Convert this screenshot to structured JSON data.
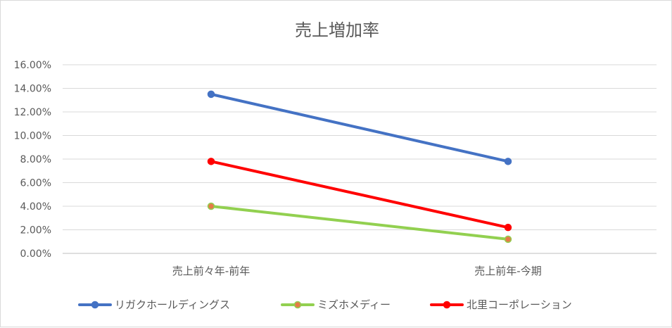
{
  "chart_data": {
    "type": "line",
    "title": "売上増加率",
    "categories": [
      "売上前々年-前年",
      "売上前年-今期"
    ],
    "ylim": [
      0,
      0.16
    ],
    "yticks": [
      "0.00%",
      "2.00%",
      "4.00%",
      "6.00%",
      "8.00%",
      "10.00%",
      "12.00%",
      "14.00%",
      "16.00%"
    ],
    "grid": true,
    "legend": "bottom",
    "series": [
      {
        "name": "リガクホールディングス",
        "values": [
          0.135,
          0.078
        ],
        "color": "#4472c4",
        "marker_fill": "#4472c4"
      },
      {
        "name": "ミズホメディー",
        "values": [
          0.04,
          0.012
        ],
        "color": "#92d050",
        "marker_fill": "#e57b47"
      },
      {
        "name": "北里コーポレーション",
        "values": [
          0.078,
          0.022
        ],
        "color": "#ff0000",
        "marker_fill": "#ff0000"
      }
    ]
  }
}
